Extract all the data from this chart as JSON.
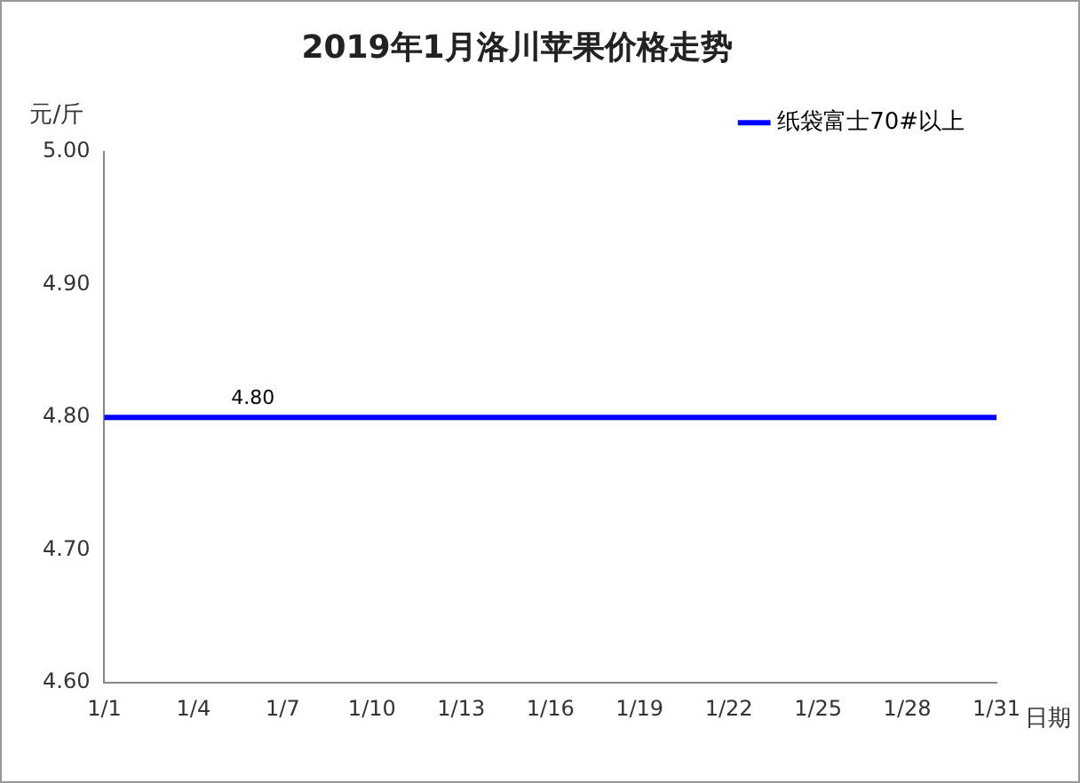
{
  "chart_data": {
    "type": "line",
    "title": "2019年1月洛川苹果价格走势",
    "ylabel": "元/斤",
    "xlabel": "日期",
    "categories": [
      "1/1",
      null,
      null,
      "1/4",
      null,
      null,
      "1/7",
      null,
      null,
      "1/10",
      null,
      null,
      "1/13",
      null,
      null,
      "1/16",
      null,
      null,
      "1/19",
      null,
      null,
      "1/22",
      null,
      null,
      "1/25",
      null,
      null,
      "1/28",
      null,
      null,
      "1/31"
    ],
    "series": [
      {
        "name": "纸袋富士70#以上",
        "color": "#0000ff",
        "values": [
          4.8,
          4.8,
          4.8,
          4.8,
          4.8,
          4.8,
          4.8,
          4.8,
          4.8,
          4.8,
          4.8,
          4.8,
          4.8,
          4.8,
          4.8,
          4.8,
          4.8,
          4.8,
          4.8,
          4.8,
          4.8,
          4.8,
          4.8,
          4.8,
          4.8,
          4.8,
          4.8,
          4.8,
          4.8,
          4.8,
          4.8
        ],
        "value_labels": [
          null,
          null,
          null,
          null,
          null,
          "4.80",
          null,
          null,
          null,
          null,
          null,
          null,
          null,
          null,
          null,
          null,
          null,
          null,
          null,
          null,
          null,
          null,
          null,
          null,
          null,
          null,
          null,
          null,
          null,
          null,
          null
        ]
      }
    ],
    "ylim": [
      4.6,
      5.0
    ],
    "yticks": [
      {
        "value": 4.6,
        "label": "4.60"
      },
      {
        "value": 4.7,
        "label": "4.70"
      },
      {
        "value": 4.8,
        "label": "4.80"
      },
      {
        "value": 4.9,
        "label": "4.90"
      },
      {
        "value": 5.0,
        "label": "5.00"
      }
    ],
    "grid": false,
    "legend": "top right",
    "marker": "none",
    "line_style": "solid"
  }
}
